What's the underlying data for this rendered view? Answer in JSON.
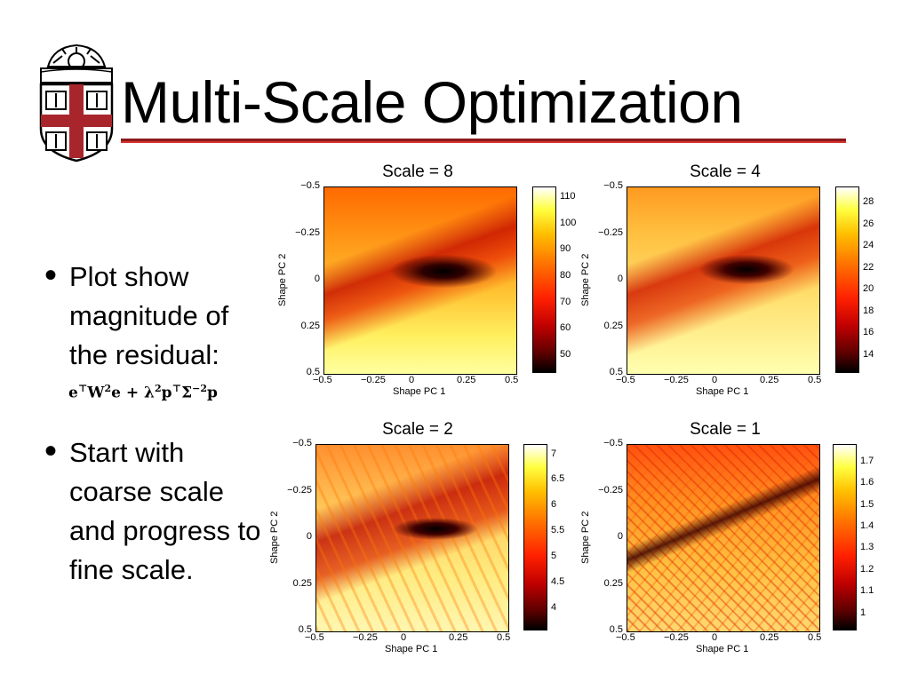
{
  "slide": {
    "title": "Multi-Scale Optimization",
    "bullets": [
      {
        "text": "Plot show magnitude of the residual:"
      },
      {
        "text": "Start with coarse scale and progress to fine scale."
      }
    ],
    "formula": {
      "e": "e",
      "t": "⊤",
      "W": "W",
      "two": "2",
      "plus": "+ λ",
      "p": "p",
      "S": "Σ",
      "m2": "−2"
    }
  },
  "chart_data": [
    {
      "type": "heatmap",
      "title": "Scale = 8",
      "xlabel": "Shape PC 1",
      "ylabel": "Shape PC 2",
      "xticks": [
        "−0.5",
        "−0.25",
        "0",
        "0.25",
        "0.5"
      ],
      "yticks": [
        "−0.5",
        "−0.25",
        "0",
        "0.25",
        "0.5"
      ],
      "colorbar_ticks": [
        "110",
        "100",
        "90",
        "80",
        "70",
        "60",
        "50"
      ],
      "clim": [
        44,
        114
      ]
    },
    {
      "type": "heatmap",
      "title": "Scale = 4",
      "xlabel": "Shape PC 1",
      "ylabel": "Shape PC 2",
      "xticks": [
        "−0.5",
        "−0.25",
        "0",
        "0.25",
        "0.5"
      ],
      "yticks": [
        "−0.5",
        "−0.25",
        "0",
        "0.25",
        "0.5"
      ],
      "colorbar_ticks": [
        "28",
        "26",
        "24",
        "22",
        "20",
        "18",
        "16",
        "14"
      ],
      "clim": [
        12.5,
        29.5
      ]
    },
    {
      "type": "heatmap",
      "title": "Scale = 2",
      "xlabel": "Shape PC 1",
      "ylabel": "Shape PC 2",
      "xticks": [
        "−0.5",
        "−0.25",
        "0",
        "0.25",
        "0.5"
      ],
      "yticks": [
        "−0.5",
        "−0.25",
        "0",
        "0.25",
        "0.5"
      ],
      "colorbar_ticks": [
        "7",
        "6.5",
        "6",
        "5.5",
        "5",
        "4.5",
        "4"
      ],
      "clim": [
        3.6,
        7.2
      ]
    },
    {
      "type": "heatmap",
      "title": "Scale = 1",
      "xlabel": "Shape PC 1",
      "ylabel": "Shape PC 2",
      "xticks": [
        "−0.5",
        "−0.25",
        "0",
        "0.25",
        "0.5"
      ],
      "yticks": [
        "−0.5",
        "−0.25",
        "0",
        "0.25",
        "0.5"
      ],
      "colorbar_ticks": [
        "1.7",
        "1.6",
        "1.5",
        "1.4",
        "1.3",
        "1.2",
        "1.1",
        "1"
      ],
      "clim": [
        0.93,
        1.78
      ]
    }
  ]
}
